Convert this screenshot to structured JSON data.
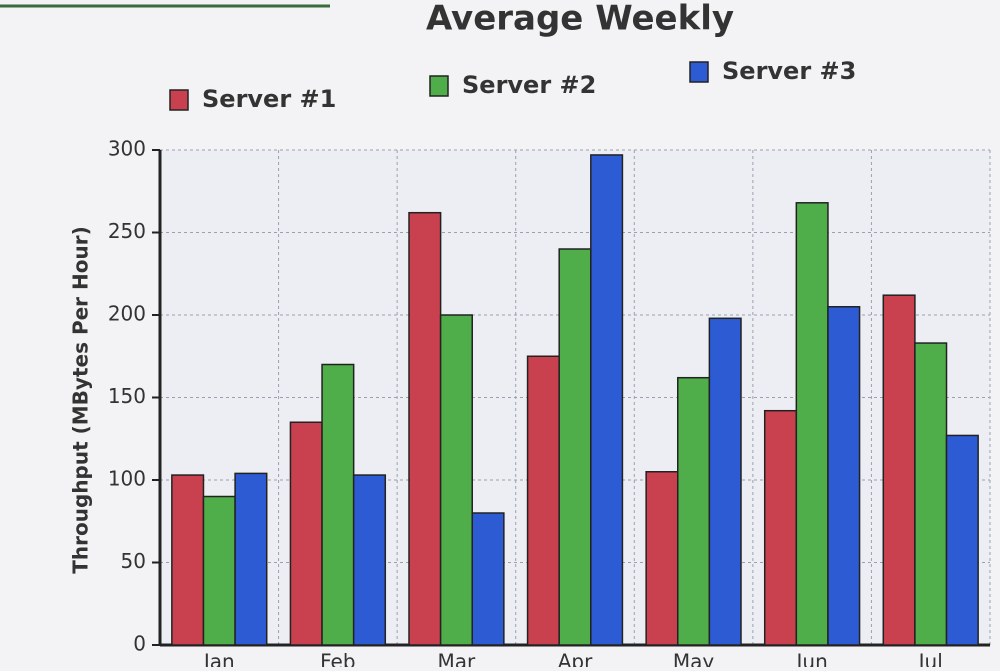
{
  "chart_data": {
    "type": "bar",
    "title": "Average Weekly",
    "y_label": "Throughput (MBytes Per Hour)",
    "categories": [
      "Jan",
      "Feb",
      "Mar",
      "Apr",
      "May",
      "Jun",
      "Jul"
    ],
    "series": [
      {
        "name": "Server #1",
        "color": "#c9404f",
        "values": [
          103,
          135,
          262,
          175,
          105,
          142,
          212
        ]
      },
      {
        "name": "Server #2",
        "color": "#4fae4a",
        "values": [
          90,
          170,
          200,
          240,
          162,
          268,
          183
        ]
      },
      {
        "name": "Server #3",
        "color": "#2c5bd4",
        "values": [
          104,
          103,
          80,
          297,
          198,
          205,
          127
        ]
      }
    ],
    "ylim": [
      0,
      300
    ],
    "yticks": [
      0,
      50,
      100,
      150,
      200,
      250,
      300
    ],
    "grid": true
  }
}
